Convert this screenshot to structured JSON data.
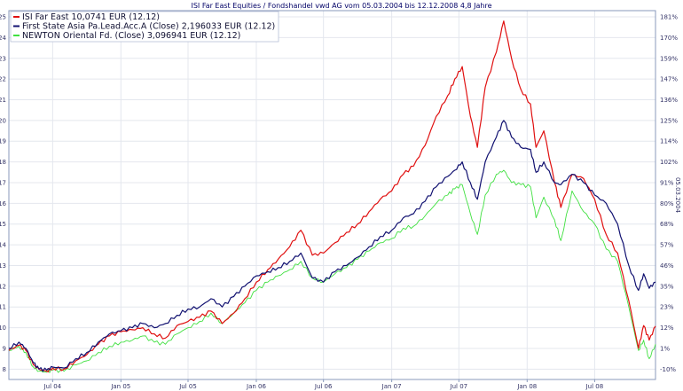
{
  "chart_data": {
    "type": "line",
    "title": "ISI Far East Equities / Fondshandel vwd AG vom 05.03.2004 bis 12.12.2008 4,8 Jahre",
    "right_axis_caption": "05.03.2004",
    "x_ticks": [
      "Jul 04",
      "Jan 05",
      "Jul 05",
      "Jan 06",
      "Jul 06",
      "Jan 07",
      "Jul 07",
      "Jan 08",
      "Jul 08"
    ],
    "x_tick_dates": [
      "2004-07-01",
      "2005-01-01",
      "2005-07-01",
      "2006-01-01",
      "2006-07-01",
      "2007-01-01",
      "2007-07-01",
      "2008-01-01",
      "2008-07-01"
    ],
    "x_range": [
      "2004-03-05",
      "2008-12-12"
    ],
    "left_ticks": [
      8,
      9,
      10,
      11,
      12,
      13,
      14,
      15,
      16,
      17,
      18,
      19,
      20,
      21,
      22,
      23,
      24,
      25
    ],
    "ylim_left": [
      7.5,
      25.3
    ],
    "right_ticks": [
      "-10%",
      "1%",
      "12%",
      "23%",
      "35%",
      "46%",
      "57%",
      "68%",
      "80%",
      "91%",
      "102%",
      "114%",
      "125%",
      "136%",
      "147%",
      "159%",
      "170%",
      "181%"
    ],
    "grid": true,
    "legend_position": "top-left",
    "series": [
      {
        "name": "ISI Far East 10,0741 EUR (12.12)",
        "color": "#e01010",
        "points": [
          [
            "2004-03-05",
            8.9
          ],
          [
            "2004-04-01",
            9.15
          ],
          [
            "2004-04-20",
            8.9
          ],
          [
            "2004-05-10",
            8.2
          ],
          [
            "2004-05-25",
            8.0
          ],
          [
            "2004-06-15",
            7.9
          ],
          [
            "2004-07-01",
            8.05
          ],
          [
            "2004-08-01",
            8.0
          ],
          [
            "2004-09-01",
            8.4
          ],
          [
            "2004-10-01",
            8.7
          ],
          [
            "2004-11-01",
            9.2
          ],
          [
            "2004-12-01",
            9.6
          ],
          [
            "2005-01-01",
            9.8
          ],
          [
            "2005-02-01",
            9.9
          ],
          [
            "2005-03-01",
            10.0
          ],
          [
            "2005-04-01",
            9.7
          ],
          [
            "2005-05-01",
            9.5
          ],
          [
            "2005-06-01",
            10.1
          ],
          [
            "2005-07-01",
            10.3
          ],
          [
            "2005-08-01",
            10.5
          ],
          [
            "2005-09-01",
            10.8
          ],
          [
            "2005-10-01",
            10.2
          ],
          [
            "2005-11-01",
            10.7
          ],
          [
            "2005-12-01",
            11.4
          ],
          [
            "2006-01-01",
            12.2
          ],
          [
            "2006-02-01",
            12.8
          ],
          [
            "2006-03-01",
            13.3
          ],
          [
            "2006-04-01",
            13.9
          ],
          [
            "2006-05-01",
            14.7
          ],
          [
            "2006-06-01",
            13.5
          ],
          [
            "2006-07-01",
            13.6
          ],
          [
            "2006-08-01",
            14.1
          ],
          [
            "2006-09-01",
            14.6
          ],
          [
            "2006-10-01",
            15.0
          ],
          [
            "2006-11-01",
            15.6
          ],
          [
            "2006-12-01",
            16.2
          ],
          [
            "2007-01-01",
            16.6
          ],
          [
            "2007-02-01",
            17.4
          ],
          [
            "2007-03-01",
            17.8
          ],
          [
            "2007-04-01",
            18.8
          ],
          [
            "2007-05-01",
            20.2
          ],
          [
            "2007-06-01",
            21.2
          ],
          [
            "2007-06-20",
            22.0
          ],
          [
            "2007-07-10",
            22.6
          ],
          [
            "2007-08-01",
            20.2
          ],
          [
            "2007-08-20",
            18.7
          ],
          [
            "2007-09-10",
            21.6
          ],
          [
            "2007-10-10",
            23.3
          ],
          [
            "2007-10-30",
            24.8
          ],
          [
            "2007-11-20",
            23.0
          ],
          [
            "2007-12-15",
            21.5
          ],
          [
            "2008-01-10",
            20.8
          ],
          [
            "2008-01-25",
            18.7
          ],
          [
            "2008-02-15",
            19.5
          ],
          [
            "2008-03-15",
            17.0
          ],
          [
            "2008-04-01",
            15.8
          ],
          [
            "2008-05-01",
            17.4
          ],
          [
            "2008-06-01",
            17.2
          ],
          [
            "2008-07-01",
            16.2
          ],
          [
            "2008-08-01",
            14.5
          ],
          [
            "2008-09-01",
            13.6
          ],
          [
            "2008-10-01",
            11.3
          ],
          [
            "2008-10-27",
            9.0
          ],
          [
            "2008-11-10",
            10.1
          ],
          [
            "2008-11-25",
            9.4
          ],
          [
            "2008-12-12",
            10.07
          ]
        ]
      },
      {
        "name": "First State Asia Pa.Lead.Acc.A (Close) 2,196033 EUR (12.12)",
        "color": "#101070",
        "points": [
          [
            "2004-03-05",
            9.0
          ],
          [
            "2004-04-01",
            9.3
          ],
          [
            "2004-04-20",
            9.0
          ],
          [
            "2004-05-10",
            8.3
          ],
          [
            "2004-05-25",
            8.0
          ],
          [
            "2004-06-15",
            7.95
          ],
          [
            "2004-07-01",
            8.1
          ],
          [
            "2004-08-01",
            8.05
          ],
          [
            "2004-09-01",
            8.5
          ],
          [
            "2004-10-01",
            8.8
          ],
          [
            "2004-11-01",
            9.3
          ],
          [
            "2004-12-01",
            9.7
          ],
          [
            "2005-01-01",
            9.85
          ],
          [
            "2005-02-01",
            10.0
          ],
          [
            "2005-03-01",
            10.2
          ],
          [
            "2005-04-01",
            10.0
          ],
          [
            "2005-05-01",
            10.2
          ],
          [
            "2005-06-01",
            10.6
          ],
          [
            "2005-07-01",
            10.9
          ],
          [
            "2005-08-01",
            11.0
          ],
          [
            "2005-09-01",
            11.4
          ],
          [
            "2005-10-01",
            11.0
          ],
          [
            "2005-11-01",
            11.5
          ],
          [
            "2005-12-01",
            12.0
          ],
          [
            "2006-01-01",
            12.5
          ],
          [
            "2006-02-01",
            12.7
          ],
          [
            "2006-03-01",
            12.9
          ],
          [
            "2006-04-01",
            13.2
          ],
          [
            "2006-05-01",
            13.6
          ],
          [
            "2006-06-01",
            12.4
          ],
          [
            "2006-07-01",
            12.2
          ],
          [
            "2006-08-01",
            12.7
          ],
          [
            "2006-09-01",
            13.0
          ],
          [
            "2006-10-01",
            13.4
          ],
          [
            "2006-11-01",
            13.9
          ],
          [
            "2006-12-01",
            14.4
          ],
          [
            "2007-01-01",
            14.7
          ],
          [
            "2007-02-01",
            15.3
          ],
          [
            "2007-03-01",
            15.5
          ],
          [
            "2007-04-01",
            16.1
          ],
          [
            "2007-05-01",
            16.8
          ],
          [
            "2007-06-01",
            17.3
          ],
          [
            "2007-06-20",
            17.6
          ],
          [
            "2007-07-10",
            18.0
          ],
          [
            "2007-08-01",
            17.0
          ],
          [
            "2007-08-20",
            16.2
          ],
          [
            "2007-09-10",
            18.0
          ],
          [
            "2007-10-10",
            19.2
          ],
          [
            "2007-10-30",
            20.0
          ],
          [
            "2007-11-20",
            19.2
          ],
          [
            "2007-12-15",
            18.7
          ],
          [
            "2008-01-10",
            18.6
          ],
          [
            "2008-01-25",
            17.5
          ],
          [
            "2008-02-15",
            18.0
          ],
          [
            "2008-03-15",
            17.0
          ],
          [
            "2008-04-01",
            16.9
          ],
          [
            "2008-05-01",
            17.4
          ],
          [
            "2008-06-01",
            17.0
          ],
          [
            "2008-07-01",
            16.4
          ],
          [
            "2008-08-01",
            16.0
          ],
          [
            "2008-09-01",
            15.0
          ],
          [
            "2008-10-01",
            13.0
          ],
          [
            "2008-10-27",
            11.8
          ],
          [
            "2008-11-10",
            12.6
          ],
          [
            "2008-11-25",
            11.9
          ],
          [
            "2008-12-12",
            12.2
          ]
        ]
      },
      {
        "name": "NEWTON Oriental Fd. (Close) 3,096941 EUR (12.12)",
        "color": "#40e040",
        "points": [
          [
            "2004-03-05",
            8.9
          ],
          [
            "2004-04-01",
            9.1
          ],
          [
            "2004-04-20",
            8.8
          ],
          [
            "2004-05-10",
            8.1
          ],
          [
            "2004-05-25",
            7.9
          ],
          [
            "2004-06-15",
            7.85
          ],
          [
            "2004-07-01",
            7.95
          ],
          [
            "2004-08-01",
            7.9
          ],
          [
            "2004-09-01",
            8.2
          ],
          [
            "2004-10-01",
            8.4
          ],
          [
            "2004-11-01",
            8.8
          ],
          [
            "2004-12-01",
            9.1
          ],
          [
            "2005-01-01",
            9.3
          ],
          [
            "2005-02-01",
            9.4
          ],
          [
            "2005-03-01",
            9.6
          ],
          [
            "2005-04-01",
            9.3
          ],
          [
            "2005-05-01",
            9.2
          ],
          [
            "2005-06-01",
            9.7
          ],
          [
            "2005-07-01",
            10.0
          ],
          [
            "2005-08-01",
            10.3
          ],
          [
            "2005-09-01",
            10.7
          ],
          [
            "2005-10-01",
            10.2
          ],
          [
            "2005-11-01",
            10.7
          ],
          [
            "2005-12-01",
            11.2
          ],
          [
            "2006-01-01",
            11.8
          ],
          [
            "2006-02-01",
            12.2
          ],
          [
            "2006-03-01",
            12.5
          ],
          [
            "2006-04-01",
            12.8
          ],
          [
            "2006-05-01",
            13.2
          ],
          [
            "2006-06-01",
            12.4
          ],
          [
            "2006-07-01",
            12.2
          ],
          [
            "2006-08-01",
            12.6
          ],
          [
            "2006-09-01",
            12.9
          ],
          [
            "2006-10-01",
            13.3
          ],
          [
            "2006-11-01",
            13.7
          ],
          [
            "2006-12-01",
            14.1
          ],
          [
            "2007-01-01",
            14.3
          ],
          [
            "2007-02-01",
            14.8
          ],
          [
            "2007-03-01",
            14.9
          ],
          [
            "2007-04-01",
            15.4
          ],
          [
            "2007-05-01",
            16.0
          ],
          [
            "2007-06-01",
            16.4
          ],
          [
            "2007-06-20",
            16.7
          ],
          [
            "2007-07-10",
            16.9
          ],
          [
            "2007-08-01",
            15.5
          ],
          [
            "2007-08-20",
            14.5
          ],
          [
            "2007-09-10",
            16.4
          ],
          [
            "2007-10-10",
            17.4
          ],
          [
            "2007-10-30",
            17.6
          ],
          [
            "2007-11-20",
            17.0
          ],
          [
            "2007-12-15",
            16.9
          ],
          [
            "2008-01-10",
            16.8
          ],
          [
            "2008-01-25",
            15.3
          ],
          [
            "2008-02-15",
            16.3
          ],
          [
            "2008-03-15",
            15.2
          ],
          [
            "2008-04-01",
            14.2
          ],
          [
            "2008-05-01",
            16.6
          ],
          [
            "2008-06-01",
            15.6
          ],
          [
            "2008-07-01",
            15.0
          ],
          [
            "2008-08-01",
            13.8
          ],
          [
            "2008-09-01",
            13.2
          ],
          [
            "2008-10-01",
            11.0
          ],
          [
            "2008-10-27",
            8.9
          ],
          [
            "2008-11-10",
            9.4
          ],
          [
            "2008-11-25",
            8.5
          ],
          [
            "2008-12-12",
            9.2
          ]
        ]
      }
    ]
  }
}
